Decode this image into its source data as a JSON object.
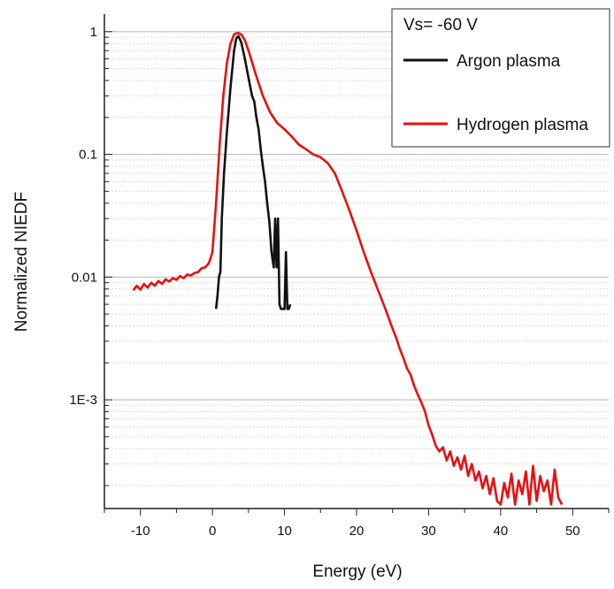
{
  "chart_data": {
    "type": "line",
    "xlabel": "Energy (eV)",
    "ylabel": "Normalized NIEDF",
    "xlim": [
      -15,
      55
    ],
    "ylim": [
      0.00013,
      1.3
    ],
    "y_scale": "log",
    "x_ticks": [
      -10,
      0,
      10,
      20,
      30,
      40,
      50
    ],
    "x_tick_labels": [
      "-10",
      "0",
      "10",
      "20",
      "30",
      "40",
      "50"
    ],
    "y_ticks": [
      0.001,
      0.01,
      0.1,
      1
    ],
    "y_tick_labels": [
      "1E-3",
      "0.01",
      "0.1",
      "1"
    ],
    "grid": true,
    "legend": {
      "title": "Vs= -60 V",
      "placement": "top-right"
    },
    "colors": {
      "argon": "#111111",
      "hydrogen": "#e81010",
      "grid": "#bdbdbd"
    },
    "series": [
      {
        "name": "Argon plasma",
        "color": "#111111",
        "x": [
          0.5,
          0.7,
          0.9,
          1.1,
          1.3,
          1.6,
          2.0,
          2.5,
          3.0,
          3.3,
          3.6,
          4.0,
          4.5,
          5.0,
          5.5,
          5.8,
          6.1,
          6.4,
          6.7,
          7.0,
          7.3,
          7.6,
          7.9,
          8.2,
          8.5,
          8.7,
          8.9,
          9.1,
          9.3,
          9.5,
          9.7,
          10.0,
          10.2,
          10.4,
          10.6,
          10.8
        ],
        "y": [
          0.0055,
          0.007,
          0.01,
          0.011,
          0.03,
          0.07,
          0.15,
          0.35,
          0.7,
          0.88,
          0.92,
          0.82,
          0.6,
          0.42,
          0.3,
          0.27,
          0.2,
          0.16,
          0.11,
          0.08,
          0.06,
          0.04,
          0.028,
          0.016,
          0.012,
          0.03,
          0.012,
          0.03,
          0.006,
          0.0055,
          0.0055,
          0.0055,
          0.016,
          0.0055,
          0.0055,
          0.006
        ]
      },
      {
        "name": "Hydrogen plasma",
        "color": "#e81010",
        "x": [
          -11,
          -10.5,
          -10,
          -9.5,
          -9,
          -8.5,
          -8,
          -7.5,
          -7,
          -6.5,
          -6,
          -5.5,
          -5,
          -4.5,
          -4,
          -3.5,
          -3,
          -2.5,
          -2,
          -1.5,
          -1,
          -0.5,
          0,
          0.5,
          1,
          1.5,
          2,
          2.5,
          3,
          3.5,
          4,
          4.5,
          5,
          6,
          7,
          8,
          9,
          10,
          11,
          12,
          13,
          14,
          15,
          16,
          17,
          18,
          19,
          20,
          21,
          22,
          23,
          24,
          25,
          25.5,
          26,
          26.5,
          27,
          27.5,
          28,
          28.5,
          29,
          29.5,
          30,
          30.5,
          31,
          31.5,
          32,
          32.5,
          33,
          33.5,
          34,
          34.5,
          35,
          35.5,
          36,
          36.5,
          37,
          37.5,
          38,
          38.5,
          39,
          39.5,
          40,
          40.5,
          41,
          41.5,
          42,
          42.5,
          43,
          43.5,
          44,
          44.5,
          45,
          45.5,
          46,
          46.5,
          47,
          47.5,
          48,
          48.5
        ],
        "y": [
          0.0078,
          0.0085,
          0.0079,
          0.0088,
          0.0082,
          0.009,
          0.0085,
          0.0093,
          0.0088,
          0.0096,
          0.0092,
          0.0098,
          0.0095,
          0.0102,
          0.0098,
          0.0105,
          0.0103,
          0.0108,
          0.011,
          0.0118,
          0.012,
          0.013,
          0.016,
          0.04,
          0.12,
          0.3,
          0.55,
          0.8,
          0.95,
          0.98,
          0.95,
          0.85,
          0.7,
          0.45,
          0.3,
          0.22,
          0.18,
          0.16,
          0.14,
          0.12,
          0.11,
          0.1,
          0.095,
          0.085,
          0.07,
          0.05,
          0.035,
          0.024,
          0.016,
          0.011,
          0.0078,
          0.0055,
          0.0038,
          0.0032,
          0.0026,
          0.0022,
          0.0018,
          0.0016,
          0.0013,
          0.0011,
          0.00095,
          0.0008,
          0.00062,
          0.00052,
          0.00042,
          0.00038,
          0.00041,
          0.00032,
          0.00038,
          0.00029,
          0.00034,
          0.00027,
          0.00035,
          0.00024,
          0.0003,
          0.00022,
          0.00026,
          0.00019,
          0.00024,
          0.00017,
          0.00023,
          0.00015,
          0.00014,
          0.00021,
          0.00016,
          0.00025,
          0.00014,
          0.00022,
          0.00017,
          0.00026,
          0.00014,
          0.00029,
          0.00015,
          0.00024,
          0.00018,
          0.00022,
          0.00014,
          0.00027,
          0.00016,
          0.00014
        ]
      }
    ]
  }
}
